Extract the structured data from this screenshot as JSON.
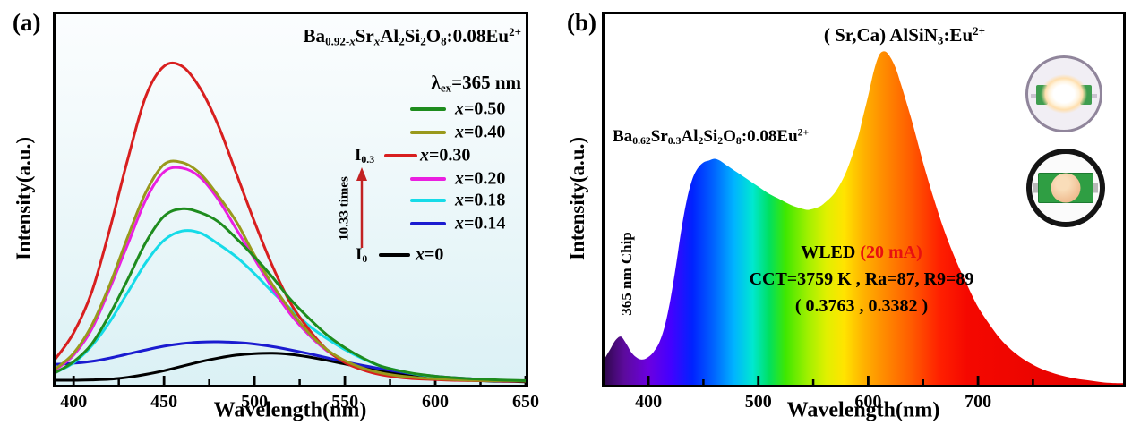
{
  "figure": {
    "panel_a": {
      "label": "(a)",
      "title_rich": [
        {
          "t": "Ba"
        },
        {
          "t": "0.92-",
          "s": "sub"
        },
        {
          "t": "x",
          "s": "sub",
          "i": true
        },
        {
          "t": "Sr"
        },
        {
          "t": "x",
          "s": "sub",
          "i": true
        },
        {
          "t": "Al"
        },
        {
          "t": "2",
          "s": "sub"
        },
        {
          "t": "Si"
        },
        {
          "t": "2",
          "s": "sub"
        },
        {
          "t": "O"
        },
        {
          "t": "8",
          "s": "sub"
        },
        {
          "t": ":0.08Eu"
        },
        {
          "t": "2+",
          "s": "sup"
        }
      ],
      "excitation_rich": [
        {
          "t": "λ"
        },
        {
          "t": "ex",
          "s": "sub"
        },
        {
          "t": "=365 nm"
        }
      ],
      "xlabel": "Wavelength(nm)",
      "ylabel": "Intensity(a.u.)",
      "x_range": [
        390,
        650
      ],
      "x_ticks_major": [
        400,
        450,
        500,
        550,
        600,
        650
      ],
      "x_ticks_minor": [
        425,
        475,
        525,
        575,
        625
      ],
      "bg_top": "#fbfdfe",
      "bg_bottom": "#dbf1f5",
      "legend": [
        {
          "color": "#1e8c1e",
          "label_rich": [
            {
              "t": "x",
              "i": true
            },
            {
              "t": "=0.50"
            }
          ]
        },
        {
          "color": "#99991c",
          "label_rich": [
            {
              "t": "x",
              "i": true
            },
            {
              "t": "=0.40"
            }
          ]
        },
        {
          "color": "#d81f1f",
          "prefix_rich": [
            {
              "t": "I"
            },
            {
              "t": "0.3",
              "s": "sub"
            }
          ],
          "label_rich": [
            {
              "t": "x",
              "i": true
            },
            {
              "t": "=0.30"
            }
          ]
        },
        {
          "color": "#ea1fe0",
          "label_rich": [
            {
              "t": "x",
              "i": true
            },
            {
              "t": "=0.20"
            }
          ]
        },
        {
          "color": "#16dbe8",
          "label_rich": [
            {
              "t": "x",
              "i": true
            },
            {
              "t": "=0.18"
            }
          ]
        },
        {
          "color": "#1b1bd0",
          "label_rich": [
            {
              "t": "x",
              "i": true
            },
            {
              "t": "=0.14"
            }
          ]
        },
        {
          "color": "#000000",
          "prefix_rich": [
            {
              "t": "I"
            },
            {
              "t": "0",
              "s": "sub"
            }
          ],
          "label_rich": [
            {
              "t": "x",
              "i": true
            },
            {
              "t": "=0"
            }
          ]
        }
      ],
      "fold_annotation": {
        "times_text": "10.33 times",
        "arrow_color": "#c22222"
      }
    },
    "panel_b": {
      "label": "(b)",
      "title_rich": [
        {
          "t": "( Sr,Ca) AlSiN"
        },
        {
          "t": "3",
          "s": "sub"
        },
        {
          "t": ":Eu"
        },
        {
          "t": "2+",
          "s": "sup"
        }
      ],
      "phosphor_rich": [
        {
          "t": "Ba"
        },
        {
          "t": "0.62",
          "s": "sub"
        },
        {
          "t": "Sr"
        },
        {
          "t": "0.3",
          "s": "sub"
        },
        {
          "t": "Al"
        },
        {
          "t": "2",
          "s": "sub"
        },
        {
          "t": "Si"
        },
        {
          "t": "2",
          "s": "sub"
        },
        {
          "t": "O"
        },
        {
          "t": "8",
          "s": "sub"
        },
        {
          "t": ":0.08Eu"
        },
        {
          "t": "2+",
          "s": "sup"
        }
      ],
      "chip_label": "365 nm Chip",
      "wled_rich": [
        {
          "t": "WLED "
        },
        {
          "t": "(20 mA)",
          "c": "#e81010"
        }
      ],
      "cct_line": "CCT=3759 K , Ra=87, R9=89",
      "cie_line": "( 0.3763 , 0.3382 )",
      "xlabel": "Wavelength(nm)",
      "ylabel": "Intensity(a.u.)",
      "x_range": [
        360,
        832
      ],
      "x_ticks_major": [
        400,
        500,
        600,
        700
      ],
      "x_ticks_minor": [
        450,
        550,
        650,
        750
      ],
      "insets": [
        "wled-lit-photo",
        "wled-unlit-photo"
      ]
    }
  },
  "chart_data": [
    {
      "type": "line",
      "panel": "a",
      "title": "Emission spectra of Ba0.92-xSrxAl2Si2O8:0.08Eu2+ (λex=365 nm)",
      "xlabel": "Wavelength(nm)",
      "ylabel": "Intensity(a.u.)",
      "xlim": [
        390,
        650
      ],
      "ylim": [
        0,
        1
      ],
      "legend_position": "right",
      "grid": false,
      "x": [
        390,
        400,
        410,
        420,
        430,
        440,
        450,
        460,
        470,
        480,
        490,
        500,
        510,
        520,
        530,
        540,
        550,
        560,
        570,
        580,
        590,
        600,
        610,
        620,
        630,
        640,
        650
      ],
      "series": [
        {
          "name": "x=0.50",
          "color": "#1e8c1e",
          "peak_nm": 459,
          "values": [
            0.033,
            0.062,
            0.11,
            0.19,
            0.285,
            0.385,
            0.455,
            0.475,
            0.465,
            0.44,
            0.395,
            0.345,
            0.29,
            0.23,
            0.18,
            0.135,
            0.1,
            0.072,
            0.05,
            0.038,
            0.029,
            0.023,
            0.019,
            0.016,
            0.014,
            0.012,
            0.011
          ]
        },
        {
          "name": "x=0.40",
          "color": "#99991c",
          "peak_nm": 455,
          "values": [
            0.043,
            0.085,
            0.16,
            0.27,
            0.4,
            0.52,
            0.595,
            0.6,
            0.57,
            0.51,
            0.44,
            0.35,
            0.27,
            0.2,
            0.14,
            0.095,
            0.065,
            0.045,
            0.032,
            0.024,
            0.019,
            0.016,
            0.014,
            0.012,
            0.011,
            0.011,
            0.01
          ]
        },
        {
          "name": "x=0.30",
          "color": "#d81f1f",
          "peak_nm": 453,
          "values": [
            0.07,
            0.14,
            0.25,
            0.42,
            0.61,
            0.78,
            0.86,
            0.86,
            0.8,
            0.7,
            0.57,
            0.44,
            0.32,
            0.22,
            0.15,
            0.095,
            0.06,
            0.04,
            0.027,
            0.02,
            0.016,
            0.014,
            0.012,
            0.011,
            0.011,
            0.01,
            0.01
          ]
        },
        {
          "name": "x=0.20",
          "color": "#ea1fe0",
          "peak_nm": 456,
          "values": [
            0.04,
            0.08,
            0.15,
            0.26,
            0.38,
            0.5,
            0.575,
            0.585,
            0.56,
            0.5,
            0.42,
            0.34,
            0.26,
            0.19,
            0.135,
            0.092,
            0.062,
            0.042,
            0.029,
            0.022,
            0.018,
            0.015,
            0.013,
            0.012,
            0.011,
            0.01,
            0.01
          ]
        },
        {
          "name": "x=0.18",
          "color": "#16dbe8",
          "peak_nm": 462,
          "values": [
            0.033,
            0.059,
            0.105,
            0.17,
            0.25,
            0.33,
            0.39,
            0.415,
            0.41,
            0.38,
            0.345,
            0.3,
            0.25,
            0.205,
            0.16,
            0.125,
            0.095,
            0.07,
            0.05,
            0.038,
            0.028,
            0.022,
            0.018,
            0.015,
            0.013,
            0.011,
            0.01
          ]
        },
        {
          "name": "x=0.14",
          "color": "#1b1bd0",
          "peak_nm": 477,
          "values": [
            0.055,
            0.058,
            0.063,
            0.072,
            0.083,
            0.094,
            0.104,
            0.111,
            0.115,
            0.116,
            0.114,
            0.11,
            0.103,
            0.094,
            0.084,
            0.073,
            0.062,
            0.052,
            0.043,
            0.035,
            0.028,
            0.023,
            0.019,
            0.016,
            0.013,
            0.011,
            0.01
          ]
        },
        {
          "name": "x=0",
          "color": "#000000",
          "peak_nm": 507,
          "values": [
            0.012,
            0.012,
            0.013,
            0.015,
            0.02,
            0.028,
            0.038,
            0.05,
            0.062,
            0.072,
            0.08,
            0.084,
            0.085,
            0.082,
            0.075,
            0.066,
            0.056,
            0.046,
            0.037,
            0.03,
            0.024,
            0.019,
            0.015,
            0.012,
            0.01,
            0.009,
            0.008
          ]
        }
      ],
      "annotation": {
        "text": "10.33 times",
        "from": "I0",
        "to": "I0.3"
      }
    },
    {
      "type": "area",
      "panel": "b",
      "title": "WLED electroluminescence spectrum (20 mA), 365 nm chip + Ba0.62Sr0.3Al2Si2O8:0.08Eu2+ + (Sr,Ca)AlSiN3:Eu2+",
      "xlabel": "Wavelength(nm)",
      "ylabel": "Intensity(a.u.)",
      "xlim": [
        360,
        832
      ],
      "ylim": [
        0,
        1
      ],
      "grid": false,
      "points": [
        [
          360,
          0.07
        ],
        [
          365,
          0.095
        ],
        [
          370,
          0.12
        ],
        [
          375,
          0.13
        ],
        [
          380,
          0.11
        ],
        [
          385,
          0.085
        ],
        [
          390,
          0.072
        ],
        [
          395,
          0.068
        ],
        [
          400,
          0.075
        ],
        [
          405,
          0.09
        ],
        [
          410,
          0.115
        ],
        [
          415,
          0.16
        ],
        [
          420,
          0.23
        ],
        [
          425,
          0.32
        ],
        [
          430,
          0.42
        ],
        [
          435,
          0.5
        ],
        [
          440,
          0.555
        ],
        [
          445,
          0.585
        ],
        [
          450,
          0.6
        ],
        [
          455,
          0.605
        ],
        [
          460,
          0.61
        ],
        [
          465,
          0.605
        ],
        [
          470,
          0.595
        ],
        [
          480,
          0.575
        ],
        [
          490,
          0.555
        ],
        [
          500,
          0.535
        ],
        [
          510,
          0.515
        ],
        [
          520,
          0.5
        ],
        [
          530,
          0.485
        ],
        [
          540,
          0.475
        ],
        [
          545,
          0.472
        ],
        [
          550,
          0.475
        ],
        [
          555,
          0.48
        ],
        [
          560,
          0.49
        ],
        [
          570,
          0.52
        ],
        [
          580,
          0.575
        ],
        [
          590,
          0.66
        ],
        [
          595,
          0.72
        ],
        [
          600,
          0.78
        ],
        [
          605,
          0.845
        ],
        [
          610,
          0.89
        ],
        [
          615,
          0.9
        ],
        [
          620,
          0.885
        ],
        [
          625,
          0.855
        ],
        [
          630,
          0.81
        ],
        [
          640,
          0.71
        ],
        [
          650,
          0.6
        ],
        [
          660,
          0.5
        ],
        [
          670,
          0.41
        ],
        [
          680,
          0.335
        ],
        [
          690,
          0.27
        ],
        [
          700,
          0.21
        ],
        [
          710,
          0.165
        ],
        [
          720,
          0.125
        ],
        [
          730,
          0.095
        ],
        [
          740,
          0.072
        ],
        [
          750,
          0.054
        ],
        [
          760,
          0.04
        ],
        [
          770,
          0.03
        ],
        [
          780,
          0.022
        ],
        [
          790,
          0.016
        ],
        [
          800,
          0.012
        ],
        [
          810,
          0.008
        ],
        [
          820,
          0.005
        ],
        [
          832,
          0.004
        ]
      ],
      "gradient_stops": [
        [
          360,
          "#30084e"
        ],
        [
          378,
          "#5c0b9c"
        ],
        [
          400,
          "#6b00e0"
        ],
        [
          420,
          "#4400ff"
        ],
        [
          440,
          "#0022ff"
        ],
        [
          460,
          "#0066ff"
        ],
        [
          478,
          "#00b4ff"
        ],
        [
          495,
          "#00e8d0"
        ],
        [
          510,
          "#00e060"
        ],
        [
          525,
          "#40e800"
        ],
        [
          545,
          "#a0f000"
        ],
        [
          562,
          "#e0f000"
        ],
        [
          578,
          "#ffe400"
        ],
        [
          595,
          "#ffb400"
        ],
        [
          612,
          "#ff9000"
        ],
        [
          640,
          "#ff5a00"
        ],
        [
          665,
          "#ff2000"
        ],
        [
          690,
          "#f50800"
        ],
        [
          832,
          "#e00000"
        ]
      ]
    }
  ]
}
